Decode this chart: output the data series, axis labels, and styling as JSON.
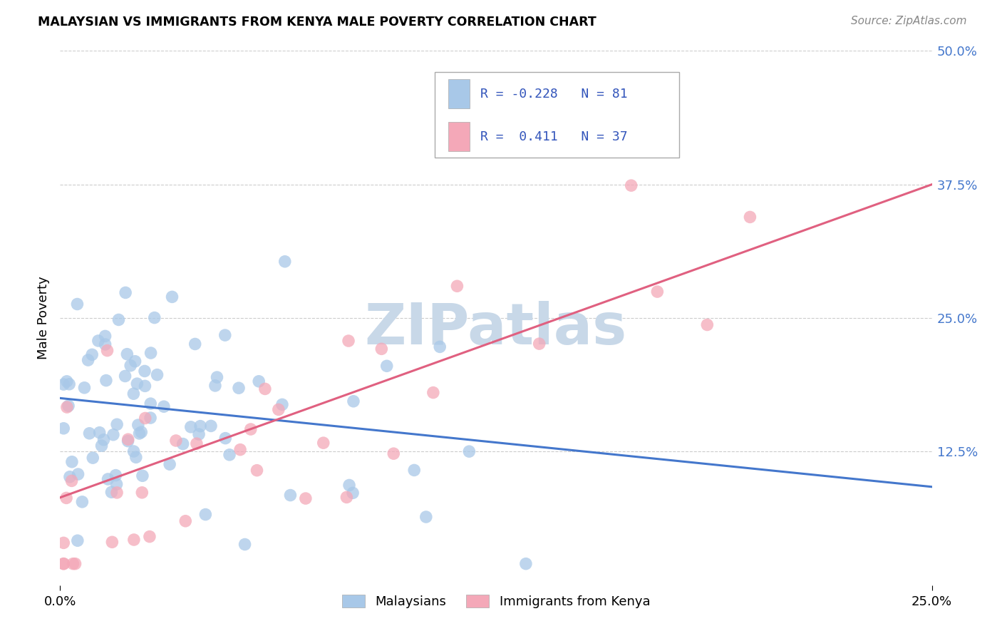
{
  "title": "MALAYSIAN VS IMMIGRANTS FROM KENYA MALE POVERTY CORRELATION CHART",
  "source": "Source: ZipAtlas.com",
  "ylabel_label": "Male Poverty",
  "xlim": [
    0.0,
    0.25
  ],
  "ylim": [
    0.0,
    0.5
  ],
  "ytick_labels": [
    "12.5%",
    "25.0%",
    "37.5%",
    "50.0%"
  ],
  "ytick_values": [
    0.125,
    0.25,
    0.375,
    0.5
  ],
  "xtick_values": [
    0.0,
    0.25
  ],
  "xtick_labels": [
    "0.0%",
    "25.0%"
  ],
  "r_malaysian": -0.228,
  "n_malaysian": 81,
  "r_kenya": 0.411,
  "n_kenya": 37,
  "color_malaysian": "#a8c8e8",
  "color_kenya": "#f4a8b8",
  "line_color_malaysian": "#4477cc",
  "line_color_kenya": "#e06080",
  "watermark": "ZIPatlas",
  "watermark_color": "#c8d8e8",
  "background_color": "#ffffff",
  "grid_color": "#cccccc",
  "legend_text_color": "#3355bb",
  "blue_line_x0": 0.0,
  "blue_line_y0": 0.175,
  "blue_line_x1": 0.25,
  "blue_line_y1": 0.092,
  "pink_line_x0": 0.0,
  "pink_line_y0": 0.082,
  "pink_line_x1": 0.25,
  "pink_line_y1": 0.375
}
